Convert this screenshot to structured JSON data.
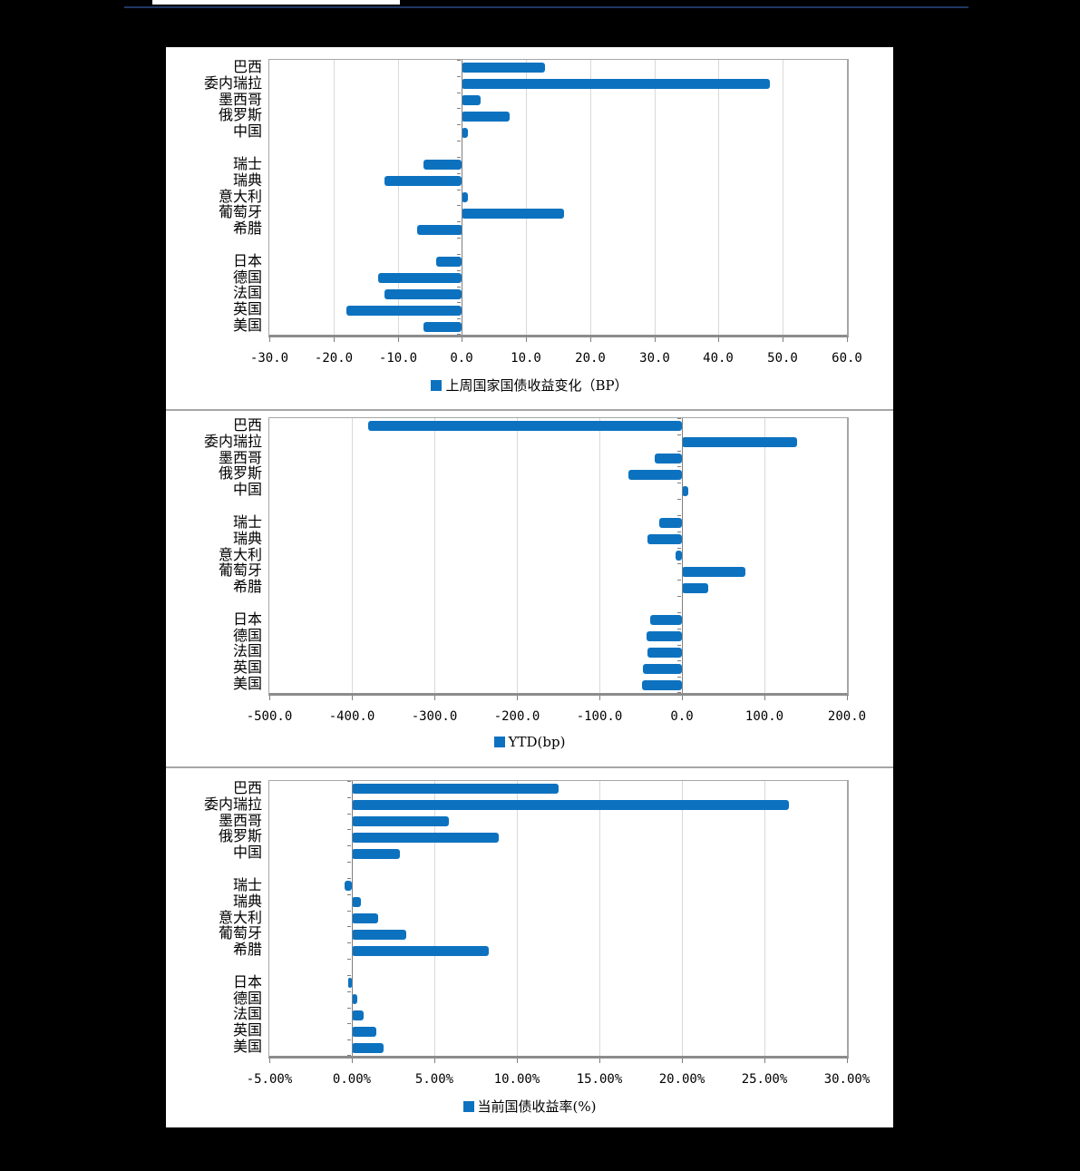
{
  "page": {
    "background_color": "#000000",
    "panel_color": "#ffffff",
    "header": {
      "strip_color": "#ffffff",
      "rule_color": "#1f3864"
    },
    "separator_color": "#a6a6a6",
    "grid_color": "#d9d9d9",
    "axis_color": "#7f7f7f"
  },
  "chart_data": [
    {
      "type": "bar",
      "orientation": "horizontal",
      "legend": "上周国家国债收益变化（BP）",
      "unit": "BP",
      "bar_color": "#0c72c0",
      "grid": true,
      "legend_position": "bottom",
      "categories": [
        "巴西",
        "委内瑞拉",
        "墨西哥",
        "俄罗斯",
        "中国",
        "",
        "瑞士",
        "瑞典",
        "意大利",
        "葡萄牙",
        "希腊",
        "",
        "日本",
        "德国",
        "法国",
        "英国",
        "美国"
      ],
      "values": [
        13,
        48,
        3,
        7.5,
        1,
        null,
        -6,
        -12,
        1,
        16,
        -7,
        null,
        -4,
        -13,
        -12,
        -18,
        -6
      ],
      "xlim": [
        -30,
        60
      ],
      "xtick_values": [
        -30,
        -20,
        -10,
        0,
        10,
        20,
        30,
        40,
        50,
        60
      ],
      "xtick_labels": [
        "-30.0",
        "-20.0",
        "-10.0",
        "0.0",
        "10.0",
        "20.0",
        "30.0",
        "40.0",
        "50.0",
        "60.0"
      ]
    },
    {
      "type": "bar",
      "orientation": "horizontal",
      "legend": "YTD(bp)",
      "unit": "bp",
      "bar_color": "#0c72c0",
      "grid": true,
      "legend_position": "bottom",
      "categories": [
        "巴西",
        "委内瑞拉",
        "墨西哥",
        "俄罗斯",
        "中国",
        "",
        "瑞士",
        "瑞典",
        "意大利",
        "葡萄牙",
        "希腊",
        "",
        "日本",
        "德国",
        "法国",
        "英国",
        "美国"
      ],
      "values": [
        -380,
        140,
        -33,
        -65,
        8,
        null,
        -27,
        -42,
        -8,
        77,
        32,
        null,
        -38,
        -43,
        -42,
        -47,
        -48
      ],
      "xlim": [
        -500,
        200
      ],
      "xtick_values": [
        -500,
        -400,
        -300,
        -200,
        -100,
        0,
        100,
        200
      ],
      "xtick_labels": [
        "-500.0",
        "-400.0",
        "-300.0",
        "-200.0",
        "-100.0",
        "0.0",
        "100.0",
        "200.0"
      ]
    },
    {
      "type": "bar",
      "orientation": "horizontal",
      "legend": "当前国债收益率(%)",
      "unit": "%",
      "bar_color": "#0c72c0",
      "grid": true,
      "legend_position": "bottom",
      "categories": [
        "巴西",
        "委内瑞拉",
        "墨西哥",
        "俄罗斯",
        "中国",
        "",
        "瑞士",
        "瑞典",
        "意大利",
        "葡萄牙",
        "希腊",
        "",
        "日本",
        "德国",
        "法国",
        "英国",
        "美国"
      ],
      "values": [
        12.5,
        26.5,
        5.9,
        8.9,
        2.9,
        null,
        -0.45,
        0.55,
        1.6,
        3.3,
        8.3,
        null,
        -0.05,
        0.35,
        0.7,
        1.5,
        1.9
      ],
      "xlim": [
        -5,
        30
      ],
      "xtick_values": [
        -5,
        0,
        5,
        10,
        15,
        20,
        25,
        30
      ],
      "xtick_labels": [
        "-5.00%",
        "0.00%",
        "5.00%",
        "10.00%",
        "15.00%",
        "20.00%",
        "25.00%",
        "30.00%"
      ]
    }
  ]
}
